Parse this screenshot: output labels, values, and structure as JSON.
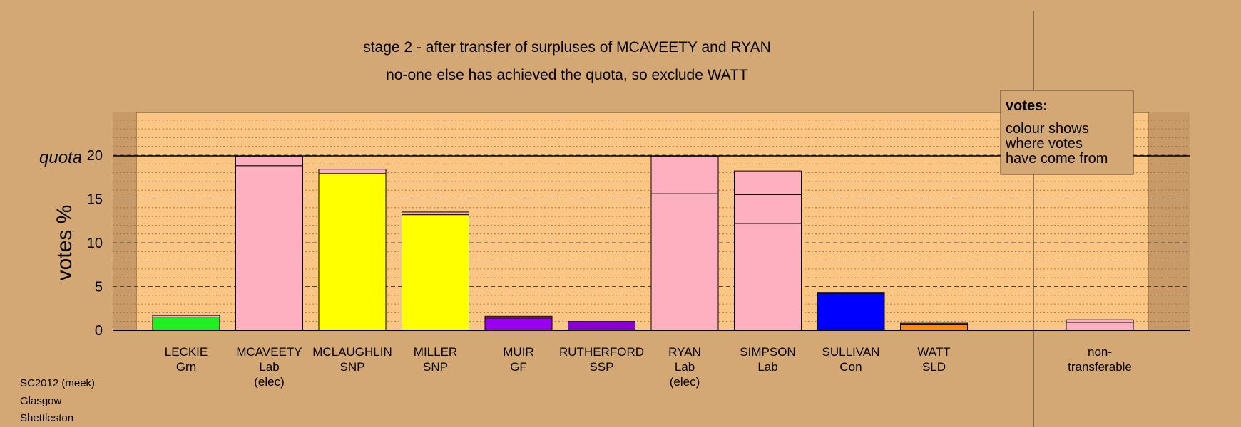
{
  "title_lines": [
    "stage 2 - after transfer of surpluses of MCAVEETY and RYAN",
    "no-one else has achieved the quota, so exclude WATT"
  ],
  "footer": [
    "SC2012 (meek)",
    "Glasgow",
    "Shettleston"
  ],
  "legend": {
    "heading": "votes:",
    "lines": [
      "colour shows",
      "where votes",
      "have come from"
    ]
  },
  "quota_label": "quota",
  "colors": {
    "background": "#d4a875",
    "plot_area": "#fbc584",
    "Grn": "#22ee22",
    "Lab": "#ffb0c0",
    "SNP": "#ffff00",
    "GF": "#9900ee",
    "SSP": "#8800cc",
    "Con": "#0000ff",
    "SLD": "#ff8c00"
  },
  "chart_data": {
    "type": "bar",
    "stacked": true,
    "ylabel": "votes %",
    "ylim": [
      0,
      25
    ],
    "yticks": [
      0,
      5,
      10,
      15,
      20
    ],
    "quota": 19.9,
    "grid": true,
    "categories": [
      {
        "name": "LECKIE",
        "party": "Grn",
        "note": ""
      },
      {
        "name": "MCAVEETY",
        "party": "Lab",
        "note": "(elec)"
      },
      {
        "name": "MCLAUGHLIN",
        "party": "SNP",
        "note": ""
      },
      {
        "name": "MILLER",
        "party": "SNP",
        "note": ""
      },
      {
        "name": "MUIR",
        "party": "GF",
        "note": ""
      },
      {
        "name": "RUTHERFORD",
        "party": "SSP",
        "note": ""
      },
      {
        "name": "RYAN",
        "party": "Lab",
        "note": "(elec)"
      },
      {
        "name": "SIMPSON",
        "party": "Lab",
        "note": ""
      },
      {
        "name": "SULLIVAN",
        "party": "Con",
        "note": ""
      },
      {
        "name": "WATT",
        "party": "SLD",
        "note": ""
      }
    ],
    "segments": [
      [
        {
          "from": "Grn",
          "value": 1.5
        },
        {
          "from": "Lab",
          "value": 0.2
        }
      ],
      [
        {
          "from": "Lab",
          "value": 18.8
        },
        {
          "from": "Lab",
          "value": 1.1
        }
      ],
      [
        {
          "from": "SNP",
          "value": 17.9
        },
        {
          "from": "Lab",
          "value": 0.5
        }
      ],
      [
        {
          "from": "SNP",
          "value": 13.2
        },
        {
          "from": "Lab",
          "value": 0.3
        }
      ],
      [
        {
          "from": "GF",
          "value": 1.4
        },
        {
          "from": "Lab",
          "value": 0.2
        }
      ],
      [
        {
          "from": "SSP",
          "value": 1.0
        }
      ],
      [
        {
          "from": "Lab",
          "value": 15.6
        },
        {
          "from": "Lab",
          "value": 4.3
        }
      ],
      [
        {
          "from": "Lab",
          "value": 12.2
        },
        {
          "from": "Lab",
          "value": 3.3
        },
        {
          "from": "Lab",
          "value": 2.7
        }
      ],
      [
        {
          "from": "Con",
          "value": 4.2
        },
        {
          "from": "Lab",
          "value": 0.1
        }
      ],
      [
        {
          "from": "SLD",
          "value": 0.7
        },
        {
          "from": "Lab",
          "value": 0.1
        }
      ]
    ],
    "nontransferable": {
      "label_lines": [
        "non-",
        "transferable"
      ],
      "segments": [
        {
          "from": "Lab",
          "value": 0.9
        },
        {
          "from": "Lab",
          "value": 0.3
        }
      ]
    }
  }
}
